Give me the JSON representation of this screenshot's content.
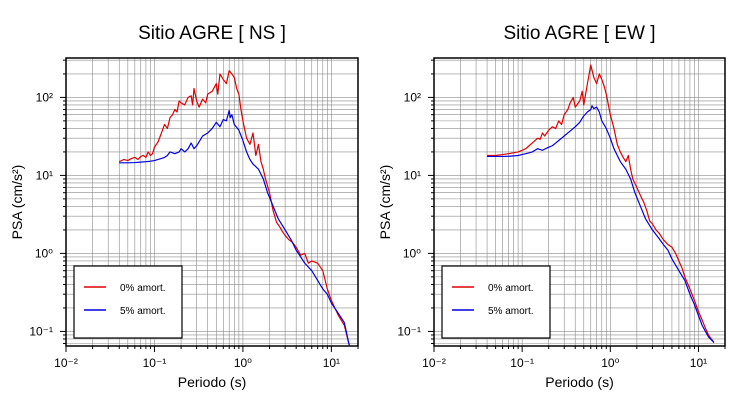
{
  "chart_data": [
    {
      "type": "line",
      "title": "Sitio AGRE [ NS ]",
      "xlabel": "Periodo (s)",
      "ylabel": "PSA (cm/s²)",
      "x_scale": "log",
      "y_scale": "log",
      "xlim": [
        0.01,
        20
      ],
      "ylim": [
        0.065,
        320
      ],
      "grid": true,
      "legend_position": "bottom-left",
      "x_ticks": [
        {
          "value": 0.01,
          "label": "10⁻²"
        },
        {
          "value": 0.1,
          "label": "10⁻¹"
        },
        {
          "value": 1,
          "label": "10⁰"
        },
        {
          "value": 10,
          "label": "10¹"
        }
      ],
      "y_ticks": [
        {
          "value": 0.1,
          "label": "10⁻¹"
        },
        {
          "value": 1,
          "label": "10⁰"
        },
        {
          "value": 10,
          "label": "10¹"
        },
        {
          "value": 100,
          "label": "10²"
        }
      ],
      "series": [
        {
          "name": "0% amort.",
          "color": "#e00000",
          "points": [
            [
              0.04,
              15
            ],
            [
              0.045,
              16
            ],
            [
              0.05,
              15.5
            ],
            [
              0.055,
              16.5
            ],
            [
              0.06,
              17
            ],
            [
              0.065,
              16
            ],
            [
              0.07,
              17.5
            ],
            [
              0.075,
              18
            ],
            [
              0.08,
              17
            ],
            [
              0.085,
              20
            ],
            [
              0.09,
              18
            ],
            [
              0.095,
              19
            ],
            [
              0.1,
              23
            ],
            [
              0.11,
              27
            ],
            [
              0.12,
              35
            ],
            [
              0.13,
              45
            ],
            [
              0.14,
              40
            ],
            [
              0.15,
              55
            ],
            [
              0.16,
              60
            ],
            [
              0.17,
              70
            ],
            [
              0.18,
              65
            ],
            [
              0.19,
              90
            ],
            [
              0.2,
              85
            ],
            [
              0.22,
              80
            ],
            [
              0.24,
              100
            ],
            [
              0.26,
              105
            ],
            [
              0.27,
              80
            ],
            [
              0.28,
              130
            ],
            [
              0.3,
              90
            ],
            [
              0.32,
              75
            ],
            [
              0.35,
              95
            ],
            [
              0.38,
              85
            ],
            [
              0.4,
              110
            ],
            [
              0.45,
              120
            ],
            [
              0.5,
              150
            ],
            [
              0.52,
              110
            ],
            [
              0.55,
              200
            ],
            [
              0.6,
              170
            ],
            [
              0.65,
              150
            ],
            [
              0.7,
              220
            ],
            [
              0.75,
              200
            ],
            [
              0.8,
              180
            ],
            [
              0.85,
              130
            ],
            [
              0.9,
              110
            ],
            [
              0.95,
              70
            ],
            [
              1,
              50
            ],
            [
              1.1,
              30
            ],
            [
              1.2,
              25
            ],
            [
              1.3,
              35
            ],
            [
              1.4,
              18
            ],
            [
              1.5,
              25
            ],
            [
              1.6,
              15
            ],
            [
              1.7,
              12
            ],
            [
              1.8,
              9
            ],
            [
              2,
              6
            ],
            [
              2.2,
              3.5
            ],
            [
              2.4,
              2.5
            ],
            [
              2.6,
              2.2
            ],
            [
              2.8,
              1.9
            ],
            [
              3,
              1.7
            ],
            [
              3.3,
              1.5
            ],
            [
              3.6,
              1.4
            ],
            [
              4,
              1.2
            ],
            [
              4.5,
              0.95
            ],
            [
              5,
              1.0
            ],
            [
              5.5,
              0.75
            ],
            [
              6,
              0.8
            ],
            [
              7,
              0.75
            ],
            [
              8,
              0.6
            ],
            [
              9,
              0.35
            ],
            [
              10,
              0.25
            ],
            [
              12,
              0.16
            ],
            [
              14,
              0.12
            ],
            [
              16,
              0.065
            ]
          ]
        },
        {
          "name": "5% amort.",
          "color": "#0000e0",
          "points": [
            [
              0.04,
              14.5
            ],
            [
              0.05,
              14.5
            ],
            [
              0.06,
              14.6
            ],
            [
              0.07,
              14.8
            ],
            [
              0.08,
              15
            ],
            [
              0.09,
              15.2
            ],
            [
              0.1,
              15.5
            ],
            [
              0.11,
              16
            ],
            [
              0.12,
              16.5
            ],
            [
              0.13,
              17
            ],
            [
              0.14,
              18
            ],
            [
              0.15,
              20
            ],
            [
              0.17,
              19
            ],
            [
              0.19,
              20
            ],
            [
              0.2,
              22
            ],
            [
              0.22,
              20
            ],
            [
              0.24,
              22
            ],
            [
              0.26,
              26
            ],
            [
              0.28,
              22
            ],
            [
              0.3,
              24
            ],
            [
              0.32,
              27
            ],
            [
              0.35,
              32
            ],
            [
              0.4,
              35
            ],
            [
              0.45,
              40
            ],
            [
              0.5,
              48
            ],
            [
              0.55,
              42
            ],
            [
              0.6,
              52
            ],
            [
              0.65,
              50
            ],
            [
              0.7,
              68
            ],
            [
              0.72,
              55
            ],
            [
              0.75,
              60
            ],
            [
              0.8,
              45
            ],
            [
              0.9,
              38
            ],
            [
              1,
              28
            ],
            [
              1.1,
              20
            ],
            [
              1.2,
              16
            ],
            [
              1.3,
              14
            ],
            [
              1.5,
              12
            ],
            [
              1.7,
              9
            ],
            [
              1.9,
              6
            ],
            [
              2.2,
              4
            ],
            [
              2.5,
              2.8
            ],
            [
              3,
              2
            ],
            [
              3.5,
              1.5
            ],
            [
              4,
              1.1
            ],
            [
              4.5,
              0.9
            ],
            [
              5,
              0.75
            ],
            [
              6,
              0.6
            ],
            [
              7,
              0.45
            ],
            [
              8,
              0.35
            ],
            [
              9,
              0.3
            ],
            [
              10,
              0.23
            ],
            [
              12,
              0.17
            ],
            [
              14,
              0.13
            ],
            [
              16,
              0.065
            ]
          ]
        }
      ]
    },
    {
      "type": "line",
      "title": "Sitio AGRE [ EW ]",
      "xlabel": "Periodo (s)",
      "ylabel": "PSA (cm/s²)",
      "x_scale": "log",
      "y_scale": "log",
      "xlim": [
        0.01,
        20
      ],
      "ylim": [
        0.065,
        320
      ],
      "grid": true,
      "legend_position": "bottom-left",
      "x_ticks": [
        {
          "value": 0.01,
          "label": "10⁻²"
        },
        {
          "value": 0.1,
          "label": "10⁻¹"
        },
        {
          "value": 1,
          "label": "10⁰"
        },
        {
          "value": 10,
          "label": "10¹"
        }
      ],
      "y_ticks": [
        {
          "value": 0.1,
          "label": "10⁻¹"
        },
        {
          "value": 1,
          "label": "10⁰"
        },
        {
          "value": 10,
          "label": "10¹"
        },
        {
          "value": 100,
          "label": "10²"
        }
      ],
      "series": [
        {
          "name": "0% amort.",
          "color": "#e00000",
          "points": [
            [
              0.04,
              18
            ],
            [
              0.05,
              18
            ],
            [
              0.06,
              18.5
            ],
            [
              0.07,
              19
            ],
            [
              0.08,
              19.5
            ],
            [
              0.09,
              20
            ],
            [
              0.1,
              21
            ],
            [
              0.11,
              22
            ],
            [
              0.12,
              24
            ],
            [
              0.13,
              26
            ],
            [
              0.14,
              28
            ],
            [
              0.15,
              30
            ],
            [
              0.16,
              29
            ],
            [
              0.17,
              35
            ],
            [
              0.18,
              32
            ],
            [
              0.2,
              38
            ],
            [
              0.22,
              42
            ],
            [
              0.24,
              40
            ],
            [
              0.26,
              50
            ],
            [
              0.28,
              45
            ],
            [
              0.3,
              60
            ],
            [
              0.33,
              70
            ],
            [
              0.35,
              85
            ],
            [
              0.38,
              100
            ],
            [
              0.4,
              75
            ],
            [
              0.45,
              90
            ],
            [
              0.48,
              120
            ],
            [
              0.5,
              80
            ],
            [
              0.55,
              150
            ],
            [
              0.6,
              260
            ],
            [
              0.65,
              180
            ],
            [
              0.7,
              150
            ],
            [
              0.75,
              200
            ],
            [
              0.8,
              170
            ],
            [
              0.85,
              140
            ],
            [
              0.9,
              110
            ],
            [
              1,
              60
            ],
            [
              1.1,
              40
            ],
            [
              1.2,
              25
            ],
            [
              1.3,
              20
            ],
            [
              1.4,
              17
            ],
            [
              1.5,
              15
            ],
            [
              1.6,
              18
            ],
            [
              1.7,
              12
            ],
            [
              1.8,
              9
            ],
            [
              2,
              7
            ],
            [
              2.2,
              5.5
            ],
            [
              2.4,
              4.5
            ],
            [
              2.6,
              3.5
            ],
            [
              2.8,
              2.6
            ],
            [
              3,
              2.4
            ],
            [
              3.3,
              2.0
            ],
            [
              3.6,
              1.8
            ],
            [
              4,
              1.5
            ],
            [
              4.5,
              1.3
            ],
            [
              5,
              1.2
            ],
            [
              5.5,
              1.0
            ],
            [
              6,
              0.8
            ],
            [
              6.5,
              0.65
            ],
            [
              7,
              0.5
            ],
            [
              8,
              0.35
            ],
            [
              9,
              0.25
            ],
            [
              10,
              0.18
            ],
            [
              11,
              0.14
            ],
            [
              12,
              0.11
            ],
            [
              13,
              0.09
            ],
            [
              14,
              0.08
            ],
            [
              15,
              0.072
            ]
          ]
        },
        {
          "name": "5% amort.",
          "color": "#0000e0",
          "points": [
            [
              0.04,
              17.5
            ],
            [
              0.05,
              17.5
            ],
            [
              0.06,
              17.5
            ],
            [
              0.07,
              17.6
            ],
            [
              0.08,
              17.8
            ],
            [
              0.09,
              18
            ],
            [
              0.1,
              18.5
            ],
            [
              0.11,
              19
            ],
            [
              0.12,
              19.5
            ],
            [
              0.13,
              20
            ],
            [
              0.14,
              21
            ],
            [
              0.15,
              22
            ],
            [
              0.17,
              21
            ],
            [
              0.2,
              23
            ],
            [
              0.22,
              24
            ],
            [
              0.24,
              26
            ],
            [
              0.26,
              28
            ],
            [
              0.28,
              30
            ],
            [
              0.3,
              32
            ],
            [
              0.33,
              35
            ],
            [
              0.36,
              38
            ],
            [
              0.4,
              42
            ],
            [
              0.45,
              48
            ],
            [
              0.5,
              58
            ],
            [
              0.55,
              65
            ],
            [
              0.6,
              70
            ],
            [
              0.62,
              78
            ],
            [
              0.65,
              72
            ],
            [
              0.7,
              75
            ],
            [
              0.75,
              65
            ],
            [
              0.8,
              50
            ],
            [
              0.9,
              40
            ],
            [
              1,
              30
            ],
            [
              1.1,
              22
            ],
            [
              1.2,
              18
            ],
            [
              1.3,
              15
            ],
            [
              1.5,
              12
            ],
            [
              1.7,
              9
            ],
            [
              1.9,
              6
            ],
            [
              2.2,
              4
            ],
            [
              2.5,
              2.8
            ],
            [
              3,
              2
            ],
            [
              3.5,
              1.6
            ],
            [
              4,
              1.3
            ],
            [
              4.5,
              1.1
            ],
            [
              5,
              0.85
            ],
            [
              6,
              0.6
            ],
            [
              7,
              0.45
            ],
            [
              8,
              0.3
            ],
            [
              9,
              0.22
            ],
            [
              10,
              0.16
            ],
            [
              11,
              0.12
            ],
            [
              12,
              0.1
            ],
            [
              13,
              0.085
            ],
            [
              14,
              0.078
            ],
            [
              15,
              0.072
            ]
          ]
        }
      ]
    }
  ]
}
